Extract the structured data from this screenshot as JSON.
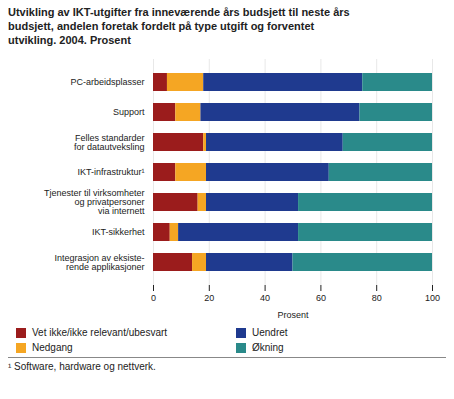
{
  "chart_data": {
    "type": "bar",
    "orientation": "horizontal",
    "stacked": true,
    "title": "Utvikling av IKT-utgifter fra inneværende års budsjett til neste års\nbudsjett, andelen foretak fordelt på type utgift og forventet\nutvikling. 2004. Prosent",
    "categories": [
      "PC-arbeidsplasser",
      "Support",
      "Felles standarder\nfor datautveksling",
      "IKT-infrastruktur¹",
      "Tjenester til virksomheter\nog privatpersoner\nvia internett",
      "IKT-sikkerhet",
      "Integrasjon av eksiste-\nrende applikasjoner"
    ],
    "series": [
      {
        "name": "Vet ikke/ikke relevant/ubesvart",
        "color": "#9b1c1c",
        "values": [
          5,
          8,
          18,
          8,
          16,
          6,
          14
        ]
      },
      {
        "name": "Nedgang",
        "color": "#f5a623",
        "values": [
          13,
          9,
          1,
          11,
          3,
          3,
          5
        ]
      },
      {
        "name": "Uendret",
        "color": "#1f3a8f",
        "values": [
          57,
          57,
          49,
          44,
          33,
          43,
          31
        ]
      },
      {
        "name": "Økning",
        "color": "#2a8a8a",
        "values": [
          25,
          26,
          32,
          37,
          48,
          48,
          50
        ]
      }
    ],
    "xlabel": "Prosent",
    "xlim": [
      0,
      100
    ],
    "xticks": [
      0,
      20,
      40,
      60,
      80,
      100
    ],
    "grid": true,
    "legend": "bottom",
    "annotations": [
      "¹ Software, hardware og nettverk."
    ]
  }
}
